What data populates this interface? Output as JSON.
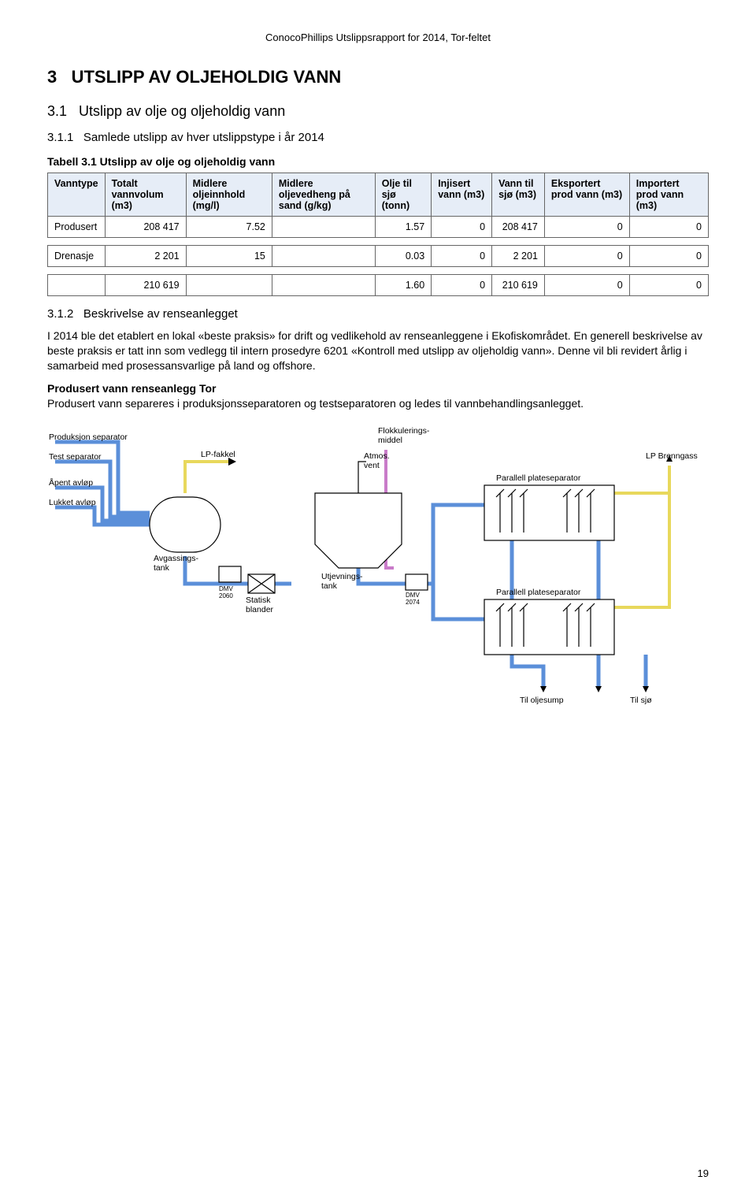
{
  "header": "ConocoPhillips Utslippsrapport for 2014, Tor-feltet",
  "h1": {
    "num": "3",
    "text": "UTSLIPP AV OLJEHOLDIG VANN"
  },
  "h2": {
    "num": "3.1",
    "text": "Utslipp av olje og oljeholdig vann"
  },
  "h3_1": {
    "num": "3.1.1",
    "text": "Samlede utslipp av hver utslippstype i år 2014"
  },
  "table3_1": {
    "caption": "Tabell 3.1 Utslipp av olje og oljeholdig vann",
    "headers": [
      "Vanntype",
      "Totalt vannvolum (m3)",
      "Midlere oljeinnhold (mg/l)",
      "Midlere oljevedheng på sand (g/kg)",
      "Olje til sjø (tonn)",
      "Injisert vann (m3)",
      "Vann til sjø (m3)",
      "Eksportert prod vann (m3)",
      "Importert prod vann (m3)"
    ],
    "rows": [
      [
        "Produsert",
        "208 417",
        "7.52",
        "",
        "1.57",
        "0",
        "208 417",
        "0",
        "0"
      ],
      [
        "Drenasje",
        "2 201",
        "15",
        "",
        "0.03",
        "0",
        "2 201",
        "0",
        "0"
      ],
      [
        "",
        "210 619",
        "",
        "",
        "1.60",
        "0",
        "210 619",
        "0",
        "0"
      ]
    ]
  },
  "h3_2": {
    "num": "3.1.2",
    "text": "Beskrivelse av renseanlegget"
  },
  "para1": "I 2014 ble det etablert en lokal «beste praksis» for drift og vedlikehold av renseanleggene i Ekofiskområdet. En generell beskrivelse av beste praksis er tatt inn som vedlegg til intern prosedyre 6201 «Kontroll med utslipp av oljeholdig vann». Denne vil bli revidert årlig i samarbeid med prosessansvarlige på land og offshore.",
  "para2_title": "Produsert vann renseanlegg Tor",
  "para2": "Produsert vann separeres i produksjonsseparatoren og testseparatoren og ledes til vannbehandlingsanlegget.",
  "diagram": {
    "labels": {
      "prod_sep": "Produksjon separator",
      "test_sep": "Test separator",
      "apen": "Åpent avløp",
      "lukket": "Lukket avløp",
      "lp_fakkel": "LP-fakkel",
      "avgass": "Avgassings-\ntank",
      "dmv1": "DMV\n2060",
      "statisk": "Statisk\nblander",
      "utjevn": "Utjevnings-\ntank",
      "dmv2": "DMV\n2074",
      "atmos": "Atmos.\nvent",
      "flokk": "Flokkulerings-\nmiddel",
      "pps1": "Parallell plateseparator",
      "pps2": "Parallell plateseparator",
      "lp_brenn": "LP Brenngass",
      "til_oljesump": "Til oljesump",
      "til_sjo": "Til sjø"
    },
    "colors": {
      "water": "#5b8fd9",
      "gas": "#e8d85c",
      "floc": "#c97bc9",
      "line": "#000000"
    }
  },
  "page_number": "19"
}
